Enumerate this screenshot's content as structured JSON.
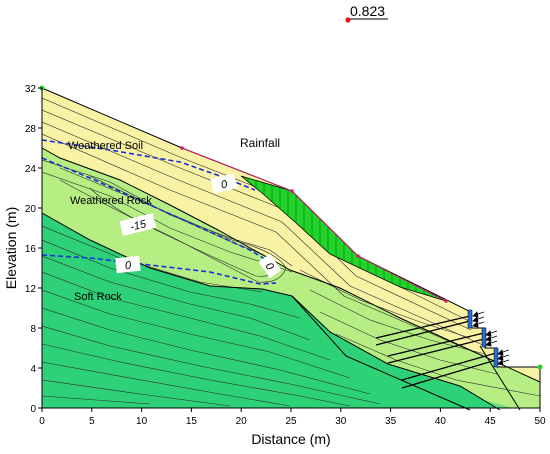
{
  "diagram": {
    "factor_of_safety": "0.823",
    "rainfall_label": "Rainfall",
    "x_axis": {
      "label": "Distance (m)",
      "ticks": [
        "0",
        "5",
        "10",
        "15",
        "20",
        "25",
        "30",
        "35",
        "40",
        "45",
        "50"
      ]
    },
    "y_axis": {
      "label": "Elevation (m)",
      "ticks": [
        "0",
        "4",
        "8",
        "12",
        "16",
        "20",
        "24",
        "28",
        "32"
      ]
    },
    "layers": {
      "weathered_soil": "Weathered Soil",
      "weathered_rock": "Weathered Rock",
      "soft_rock": "Soft Rock"
    },
    "pore_pressure_labels": [
      "0",
      "-15",
      "0",
      "0"
    ],
    "colors": {
      "weathered_soil": "#f8f2a4",
      "weathered_rock": "#b6ee84",
      "soft_rock": "#2ed177",
      "slip_surface": "#20d42a",
      "water_table": "#1a2fd8",
      "critical_center": "#e8141a",
      "slope_surface": "#c8206a",
      "anchor_head": "#2a6dd8"
    }
  }
}
